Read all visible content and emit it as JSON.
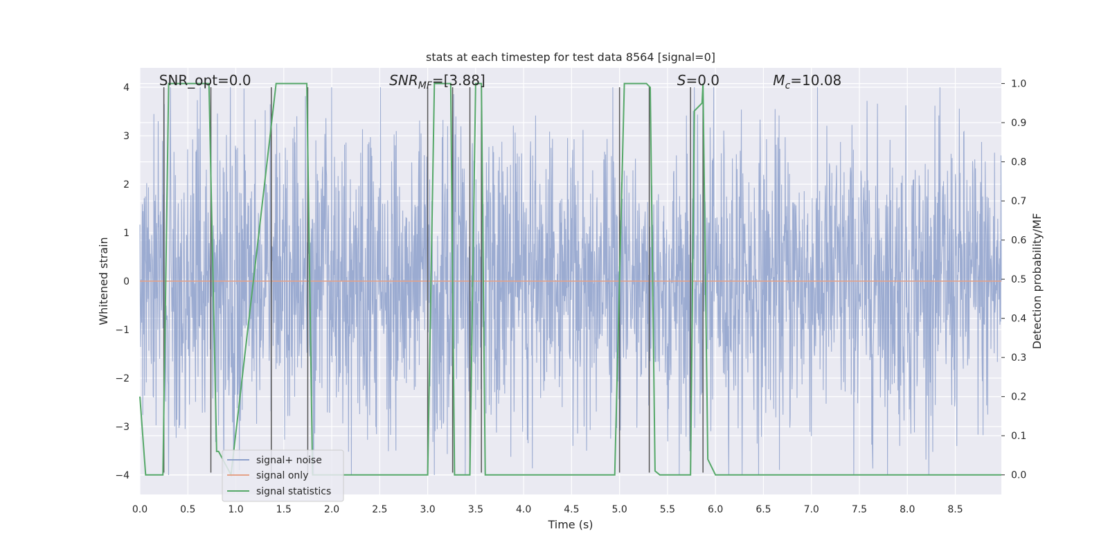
{
  "chart_data": {
    "type": "line",
    "title": "stats at each timestep for test data 8564 [signal=0]",
    "xlabel": "Time (s)",
    "ylabel_left": "Whitened strain",
    "ylabel_right": "Detection probability/MF",
    "xlim": [
      0.0,
      8.98
    ],
    "ylim_left": [
      -4.4,
      4.4
    ],
    "ylim_right": [
      -0.05,
      1.04
    ],
    "xticks": [
      "0.0",
      "0.5",
      "1.0",
      "1.5",
      "2.0",
      "2.5",
      "3.0",
      "3.5",
      "4.0",
      "4.5",
      "5.0",
      "5.5",
      "6.0",
      "6.5",
      "7.0",
      "7.5",
      "8.0",
      "8.5"
    ],
    "yticks_left": [
      "−4",
      "−3",
      "−2",
      "−1",
      "0",
      "1",
      "2",
      "3",
      "4"
    ],
    "yticks_right": [
      "0.0",
      "0.1",
      "0.2",
      "0.3",
      "0.4",
      "0.5",
      "0.6",
      "0.7",
      "0.8",
      "0.9",
      "1.0"
    ],
    "grid": true,
    "legend_placement": "lower-left",
    "annotations": [
      {
        "text": "SNR_opt=0.0",
        "x": 0.2,
        "y": 4.1
      },
      {
        "text": "SNR",
        "sub": "MF",
        "rest": "=[3.88]",
        "x": 2.6,
        "y": 4.1
      },
      {
        "text": "S",
        "rest": "=0.0",
        "x": 5.6,
        "y": 4.1
      },
      {
        "text": "M",
        "sub": "c",
        "rest": "=10.08",
        "x": 6.6,
        "y": 4.1
      }
    ],
    "vlines": [
      0.25,
      0.74,
      1.37,
      1.75,
      3.0,
      3.26,
      3.44,
      3.56,
      5.0,
      5.31,
      5.74,
      5.87
    ],
    "series": [
      {
        "name": "signal+ noise",
        "color": "#8da0cb",
        "note_noise_amplitude": 1.6,
        "x_range": [
          0.0,
          8.98
        ]
      },
      {
        "name": "signal only",
        "color": "#e5a287",
        "x": [
          0.0,
          8.98
        ],
        "y": [
          0.0,
          0.0
        ]
      },
      {
        "name": "signal statistics",
        "color": "#55a868",
        "axis": "right",
        "x": [
          0.0,
          0.06,
          0.24,
          0.3,
          0.72,
          0.8,
          0.82,
          0.95,
          1.42,
          1.48,
          1.74,
          1.8,
          2.0,
          2.5,
          3.0,
          3.07,
          3.24,
          3.28,
          3.34,
          3.44,
          3.5,
          3.56,
          3.6,
          3.7,
          4.0,
          4.5,
          4.95,
          5.05,
          5.28,
          5.32,
          5.37,
          5.42,
          5.48,
          5.74,
          5.78,
          5.86,
          5.87,
          5.92,
          6.0,
          6.4,
          7.0,
          8.98
        ],
        "y": [
          0.2,
          0.0,
          0.0,
          1.0,
          1.0,
          0.06,
          0.06,
          0.0,
          1.0,
          1.0,
          1.0,
          0.0,
          0.0,
          0.0,
          0.0,
          1.0,
          1.0,
          0.0,
          0.0,
          0.0,
          1.0,
          1.0,
          0.0,
          0.0,
          0.0,
          0.0,
          0.0,
          1.0,
          1.0,
          0.99,
          0.01,
          0.0,
          0.0,
          0.0,
          0.93,
          0.95,
          1.0,
          0.04,
          0.0,
          0.0,
          0.0,
          0.0
        ]
      }
    ]
  }
}
